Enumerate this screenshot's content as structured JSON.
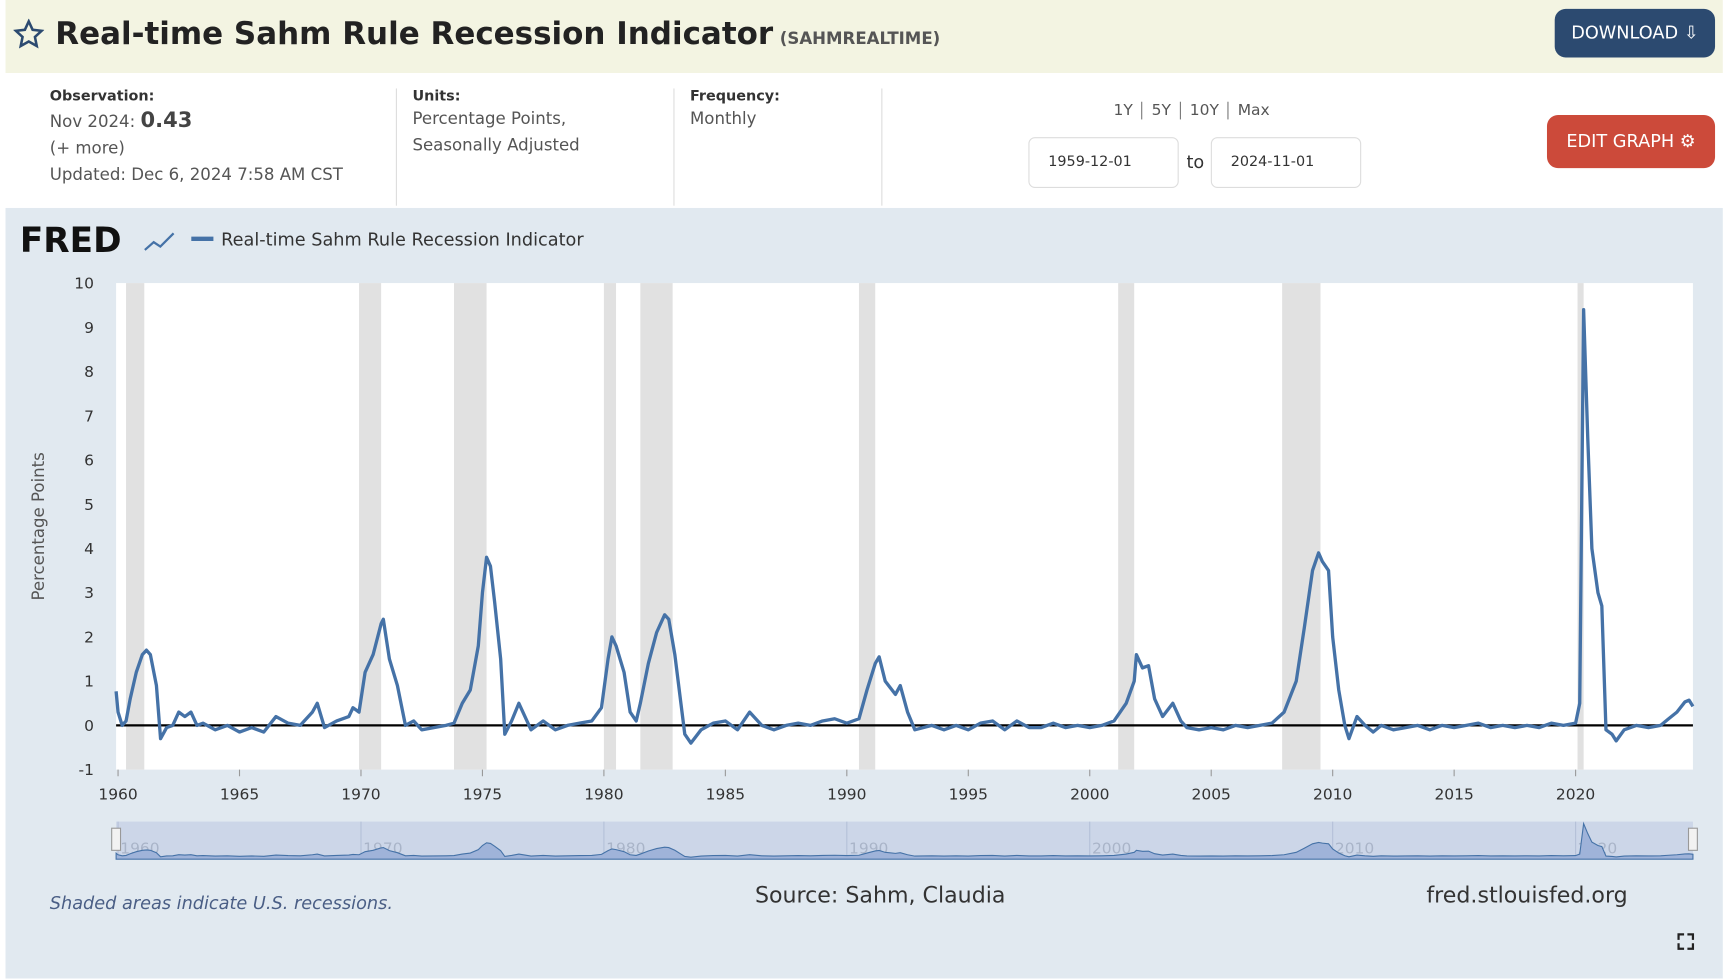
{
  "header": {
    "title": "Real-time Sahm Rule Recession Indicator",
    "series_id": "(SAHMREALTIME)",
    "download": "DOWNLOAD",
    "observation_label": "Observation:",
    "observation_date": "Nov 2024:",
    "observation_value": 0.43,
    "more": "(+ more)",
    "updated_label": "Updated:",
    "updated": "Dec 6, 2024 7:58 AM CST",
    "units_label": "Units:",
    "units": "Percentage Points,",
    "units_2": "Seasonally Adjusted",
    "frequency_label": "Frequency:",
    "frequency": "Monthly",
    "ranges": [
      "1Y",
      "5Y",
      "10Y",
      "Max"
    ],
    "start_date": "1959-12-01",
    "to": "to",
    "end_date": "2024-11-01",
    "edit": "EDIT GRAPH"
  },
  "chart_data": {
    "type": "line",
    "logo": "FRED",
    "ylabel": "Percentage Points",
    "note": "Shaded areas indicate U.S. recessions.",
    "source": "Source: Sahm, Claudia",
    "site": "fred.stlouisfed.org",
    "xlim": [
      1959.92,
      2024.83
    ],
    "xticks": [
      1960,
      1965,
      1970,
      1975,
      1980,
      1985,
      1990,
      1995,
      2000,
      2005,
      2010,
      2015,
      2020
    ],
    "ylim": [
      -1,
      10
    ],
    "yticks": [
      -1,
      0,
      1,
      2,
      3,
      4,
      5,
      6,
      7,
      8,
      9,
      10
    ],
    "navigator_xticks": [
      1960,
      1970,
      1980,
      1990,
      2000,
      2010,
      2020
    ],
    "recessions": [
      [
        1960.33,
        1961.08
      ],
      [
        1969.92,
        1970.83
      ],
      [
        1973.83,
        1975.17
      ],
      [
        1980.0,
        1980.5
      ],
      [
        1981.5,
        1982.83
      ],
      [
        1990.5,
        1991.17
      ],
      [
        2001.17,
        2001.83
      ],
      [
        2007.92,
        2009.5
      ],
      [
        2020.08,
        2020.33
      ]
    ],
    "series": [
      {
        "name": "Real-time Sahm Rule Recession Indicator",
        "color": "#4572a7",
        "x": [
          1959.92,
          1960.0,
          1960.17,
          1960.33,
          1960.5,
          1960.75,
          1961.0,
          1961.17,
          1961.33,
          1961.58,
          1961.75,
          1962.0,
          1962.25,
          1962.5,
          1962.75,
          1963.0,
          1963.25,
          1963.5,
          1964,
          1964.5,
          1965,
          1965.5,
          1966,
          1966.5,
          1967,
          1967.5,
          1968,
          1968.2,
          1968.5,
          1969,
          1969.5,
          1969.67,
          1969.92,
          1970.17,
          1970.5,
          1970.83,
          1970.92,
          1971.17,
          1971.5,
          1971.83,
          1972.17,
          1972.5,
          1973,
          1973.5,
          1973.83,
          1974.17,
          1974.5,
          1974.83,
          1975.0,
          1975.17,
          1975.33,
          1975.5,
          1975.75,
          1975.92,
          1976.2,
          1976.5,
          1976.75,
          1977,
          1977.5,
          1978,
          1978.5,
          1979,
          1979.5,
          1979.9,
          1980.17,
          1980.33,
          1980.5,
          1980.83,
          1981.08,
          1981.33,
          1981.5,
          1981.83,
          1982.17,
          1982.5,
          1982.67,
          1982.92,
          1983.17,
          1983.33,
          1983.58,
          1984,
          1984.5,
          1985,
          1985.5,
          1986,
          1986.5,
          1987,
          1987.5,
          1988,
          1988.5,
          1989,
          1989.5,
          1990,
          1990.5,
          1990.83,
          1991.17,
          1991.33,
          1991.58,
          1992.0,
          1992.2,
          1992.5,
          1992.8,
          1993.5,
          1994,
          1994.5,
          1995,
          1995.5,
          1996,
          1996.5,
          1997,
          1997.5,
          1998,
          1998.5,
          1999,
          1999.5,
          2000,
          2000.5,
          2001,
          2001.5,
          2001.83,
          2001.92,
          2002.17,
          2002.42,
          2002.67,
          2003.0,
          2003.42,
          2003.75,
          2004,
          2004.5,
          2005,
          2005.5,
          2006,
          2006.5,
          2007,
          2007.5,
          2008.0,
          2008.5,
          2008.83,
          2009.17,
          2009.42,
          2009.58,
          2009.83,
          2010.0,
          2010.25,
          2010.5,
          2010.67,
          2011,
          2011.33,
          2011.67,
          2012,
          2012.5,
          2013,
          2013.5,
          2014,
          2014.5,
          2015,
          2015.5,
          2016,
          2016.5,
          2017,
          2017.5,
          2018,
          2018.5,
          2019,
          2019.5,
          2020.0,
          2020.17,
          2020.33,
          2020.5,
          2020.67,
          2020.92,
          2021.08,
          2021.25,
          2021.5,
          2021.67,
          2022,
          2022.5,
          2023,
          2023.5,
          2023.83,
          2024.17,
          2024.5,
          2024.67,
          2024.83
        ],
        "values": [
          0.77,
          0.3,
          0.0,
          0.1,
          0.6,
          1.2,
          1.6,
          1.7,
          1.6,
          0.9,
          -0.3,
          -0.05,
          0.0,
          0.3,
          0.2,
          0.3,
          0.0,
          0.05,
          -0.1,
          0.0,
          -0.15,
          -0.05,
          -0.15,
          0.2,
          0.05,
          0.0,
          0.3,
          0.5,
          -0.05,
          0.1,
          0.2,
          0.4,
          0.3,
          1.2,
          1.6,
          2.3,
          2.4,
          1.5,
          0.9,
          0.0,
          0.1,
          -0.1,
          -0.05,
          0.0,
          0.05,
          0.5,
          0.8,
          1.8,
          3.0,
          3.8,
          3.6,
          2.8,
          1.5,
          -0.2,
          0.1,
          0.5,
          0.2,
          -0.1,
          0.1,
          -0.1,
          0.0,
          0.05,
          0.1,
          0.4,
          1.5,
          2.0,
          1.8,
          1.2,
          0.3,
          0.1,
          0.5,
          1.4,
          2.1,
          2.5,
          2.4,
          1.6,
          0.5,
          -0.2,
          -0.4,
          -0.1,
          0.05,
          0.1,
          -0.1,
          0.3,
          0.0,
          -0.1,
          0.0,
          0.05,
          0.0,
          0.1,
          0.15,
          0.05,
          0.15,
          0.8,
          1.4,
          1.55,
          1.0,
          0.7,
          0.9,
          0.3,
          -0.1,
          0.0,
          -0.1,
          0.0,
          -0.1,
          0.05,
          0.1,
          -0.1,
          0.1,
          -0.05,
          -0.05,
          0.05,
          -0.05,
          0.0,
          -0.05,
          0.0,
          0.1,
          0.5,
          1.0,
          1.6,
          1.3,
          1.35,
          0.6,
          0.2,
          0.5,
          0.1,
          -0.05,
          -0.1,
          -0.05,
          -0.1,
          0.0,
          -0.05,
          0.0,
          0.05,
          0.3,
          1.0,
          2.2,
          3.5,
          3.9,
          3.7,
          3.5,
          2.0,
          0.8,
          0.0,
          -0.3,
          0.2,
          0.0,
          -0.15,
          0.0,
          -0.1,
          -0.05,
          0.0,
          -0.1,
          0.0,
          -0.05,
          0.0,
          0.05,
          -0.05,
          0.0,
          -0.05,
          0.0,
          -0.05,
          0.05,
          0.0,
          0.05,
          0.5,
          9.4,
          6.5,
          4.0,
          3.0,
          2.7,
          -0.1,
          -0.2,
          -0.35,
          -0.1,
          0.0,
          -0.05,
          0.0,
          0.15,
          0.3,
          0.53,
          0.57,
          0.43
        ]
      }
    ]
  }
}
